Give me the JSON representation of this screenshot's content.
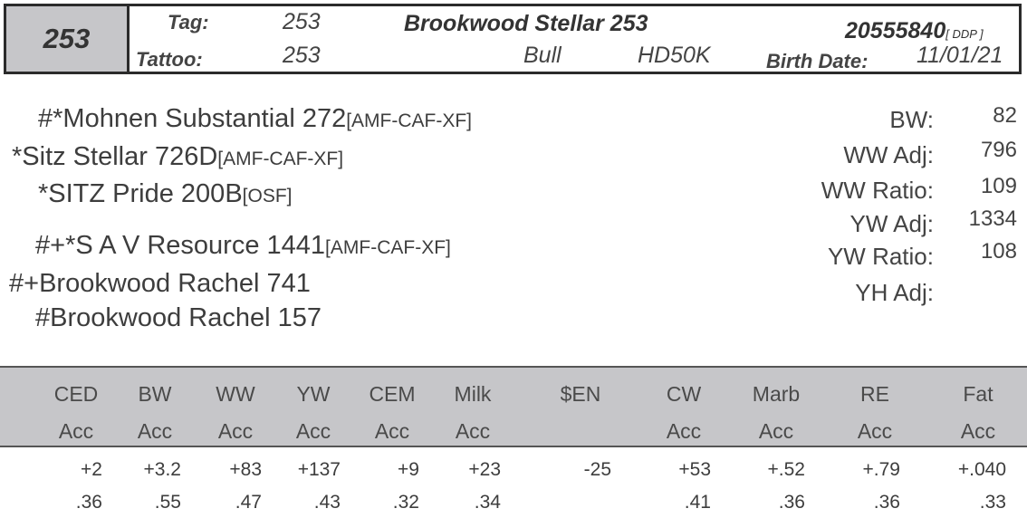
{
  "header": {
    "lot": "253",
    "tag_label": "Tag:",
    "tag": "253",
    "tattoo_label": "Tattoo:",
    "tattoo": "253",
    "name": "Brookwood Stellar 253",
    "reg_number": "20555840",
    "reg_suffix": "[ DDP ]",
    "sex": "Bull",
    "genomic": "HD50K",
    "birth_date_label": "Birth Date:",
    "birth_date": "11/01/21"
  },
  "pedigree": {
    "sire_sire": "#*Mohnen Substantial 272",
    "sire_sire_reg": "[AMF-CAF-XF]",
    "sire": "*Sitz Stellar 726D",
    "sire_reg": "[AMF-CAF-XF]",
    "sire_dam": "*SITZ Pride 200B",
    "sire_dam_reg": "[OSF]",
    "dam_sire": "#+*S A V Resource 1441",
    "dam_sire_reg": "[AMF-CAF-XF]",
    "dam": "#+Brookwood Rachel 741",
    "dam_dam": "#Brookwood Rachel 157"
  },
  "performance": {
    "bw_label": "BW:",
    "bw": "82",
    "ww_adj_label": "WW Adj:",
    "ww_adj": "796",
    "ww_ratio_label": "WW Ratio:",
    "ww_ratio": "109",
    "yw_adj_label": "YW Adj:",
    "yw_adj": "1334",
    "yw_ratio_label": "YW Ratio:",
    "yw_ratio": "108",
    "yh_adj_label": "YH Adj:"
  },
  "epds": {
    "ced": {
      "label": "CED",
      "acc_label": "Acc",
      "value": "+2",
      "acc": ".36"
    },
    "bw": {
      "label": "BW",
      "acc_label": "Acc",
      "value": "+3.2",
      "acc": ".55"
    },
    "ww": {
      "label": "WW",
      "acc_label": "Acc",
      "value": "+83",
      "acc": ".47"
    },
    "yw": {
      "label": "YW",
      "acc_label": "Acc",
      "value": "+137",
      "acc": ".43"
    },
    "cem": {
      "label": "CEM",
      "acc_label": "Acc",
      "value": "+9",
      "acc": ".32"
    },
    "milk": {
      "label": "Milk",
      "acc_label": "Acc",
      "value": "+23",
      "acc": ".34"
    },
    "en": {
      "label": "$EN",
      "value": "-25"
    },
    "cw": {
      "label": "CW",
      "acc_label": "Acc",
      "value": "+53",
      "acc": ".41"
    },
    "marb": {
      "label": "Marb",
      "acc_label": "Acc",
      "value": "+.52",
      "acc": ".36"
    },
    "re": {
      "label": "RE",
      "acc_label": "Acc",
      "value": "+.79",
      "acc": ".36"
    },
    "fat": {
      "label": "Fat",
      "acc_label": "Acc",
      "value": "+.040",
      "acc": ".33"
    }
  }
}
